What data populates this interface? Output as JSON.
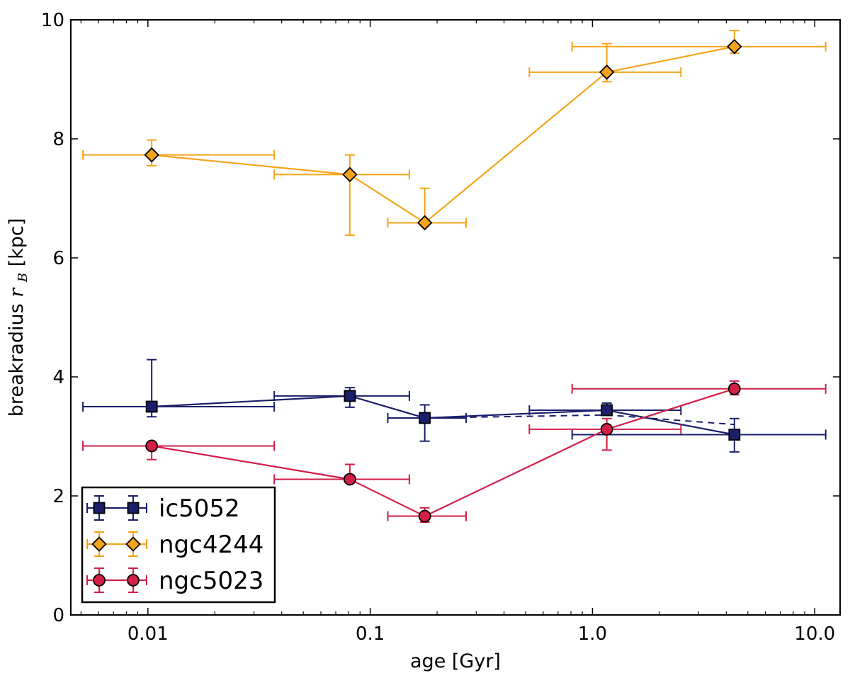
{
  "chart_data": {
    "type": "scatter",
    "title": "",
    "xlabel": "age [Gyr]",
    "ylabel_main": "breakradius ",
    "ylabel_sym": "r",
    "ylabel_sub": "B",
    "ylabel_unit": " [kpc]",
    "xscale": "log",
    "xlim": [
      0.0045,
      13.0
    ],
    "ylim": [
      0,
      10
    ],
    "xticks": [
      0.01,
      0.1,
      1.0,
      10.0
    ],
    "xtick_labels": [
      "0.01",
      "0.1",
      "1.0",
      "10.0"
    ],
    "yticks": [
      0,
      2,
      4,
      6,
      8,
      10
    ],
    "ytick_labels": [
      "0",
      "2",
      "4",
      "6",
      "8",
      "10"
    ],
    "grid": false,
    "legend_position": "lower-left",
    "series": [
      {
        "name": "ic5052",
        "color": "#1b1f6b",
        "marker": "square",
        "x": [
          0.0104,
          0.081,
          0.176,
          1.16,
          4.35
        ],
        "y": [
          3.5,
          3.68,
          3.31,
          3.44,
          3.03
        ],
        "xerr_low": [
          0.0051,
          0.037,
          0.12,
          0.52,
          0.81
        ],
        "xerr_high": [
          0.037,
          0.15,
          0.27,
          2.5,
          11.2
        ],
        "yerr_low": [
          3.33,
          3.49,
          2.92,
          3.36,
          2.74
        ],
        "yerr_high": [
          4.29,
          3.82,
          3.53,
          3.56,
          3.3
        ],
        "dashed_segment": {
          "x": [
            0.176,
            1.16,
            4.35
          ],
          "y": [
            3.31,
            3.36,
            3.2
          ]
        }
      },
      {
        "name": "ngc4244",
        "color": "#f5a41a",
        "marker": "diamond",
        "x": [
          0.0104,
          0.081,
          0.176,
          1.16,
          4.35
        ],
        "y": [
          7.73,
          7.4,
          6.59,
          9.12,
          9.55
        ],
        "xerr_low": [
          0.0051,
          0.037,
          0.12,
          0.52,
          0.81
        ],
        "xerr_high": [
          0.037,
          0.15,
          0.27,
          2.5,
          11.2
        ],
        "yerr_low": [
          7.55,
          6.38,
          6.59,
          8.96,
          9.44
        ],
        "yerr_high": [
          7.98,
          7.73,
          7.17,
          9.6,
          9.82
        ]
      },
      {
        "name": "ngc5023",
        "color": "#d11f47",
        "marker": "circle",
        "x": [
          0.0104,
          0.081,
          0.176,
          1.16,
          4.35
        ],
        "y": [
          2.84,
          2.28,
          1.66,
          3.12,
          3.8
        ],
        "xerr_low": [
          0.0051,
          0.037,
          0.12,
          0.52,
          0.81
        ],
        "xerr_high": [
          0.037,
          0.15,
          0.27,
          2.5,
          11.2
        ],
        "yerr_low": [
          2.61,
          2.26,
          1.56,
          2.77,
          3.7
        ],
        "yerr_high": [
          2.9,
          2.53,
          1.8,
          3.3,
          3.93
        ]
      }
    ]
  }
}
